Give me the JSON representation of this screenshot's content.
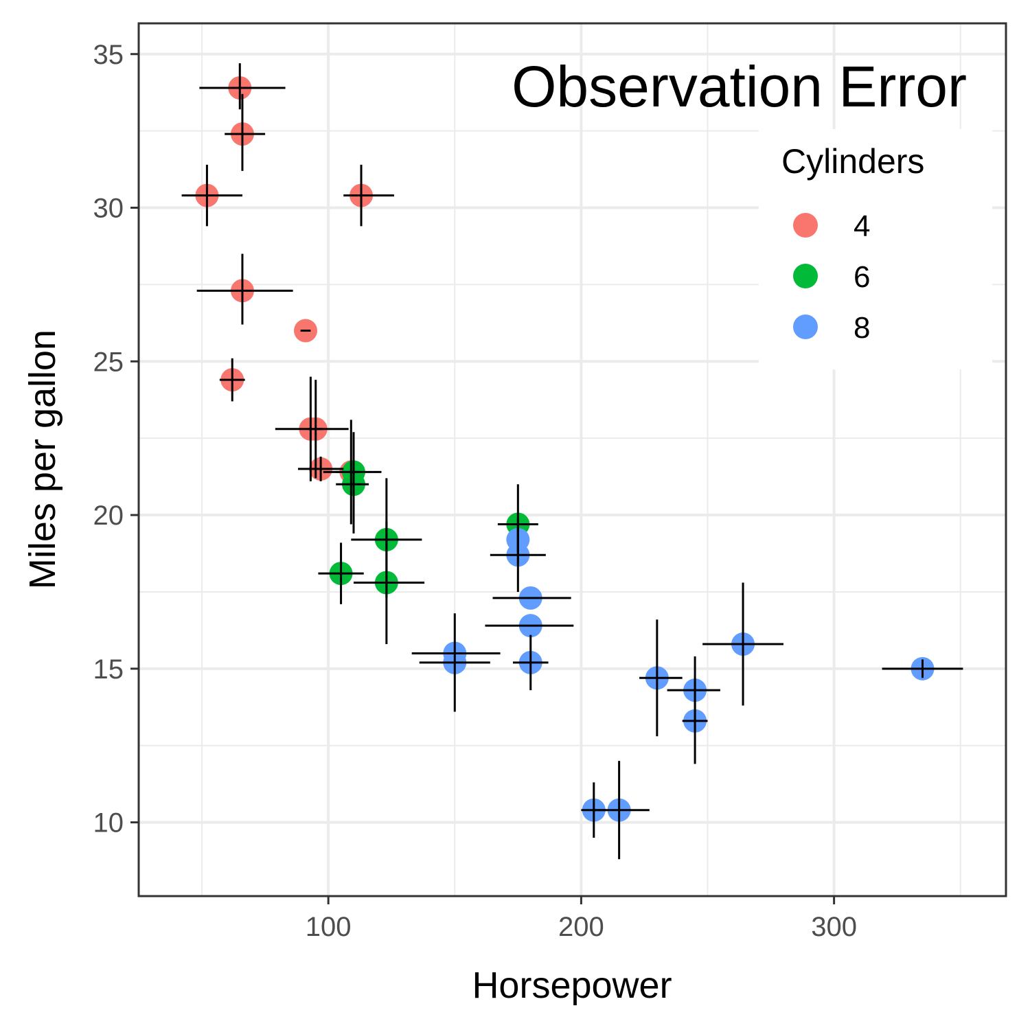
{
  "chart_data": {
    "type": "scatter",
    "title": "Observation Error",
    "xlabel": "Horsepower",
    "ylabel": "Miles per gallon",
    "xlim": [
      25,
      368
    ],
    "ylim": [
      7.6,
      36
    ],
    "xticks": [
      100,
      200,
      300
    ],
    "yticks": [
      10,
      15,
      20,
      25,
      30,
      35
    ],
    "grid": true,
    "legend": {
      "title": "Cylinders",
      "position": "top-right",
      "entries": [
        {
          "label": "4",
          "color": "#F8766D"
        },
        {
          "label": "6",
          "color": "#00BA38"
        },
        {
          "label": "8",
          "color": "#619CFF"
        }
      ]
    },
    "colors": {
      "4": "#F8766D",
      "6": "#00BA38",
      "8": "#619CFF"
    },
    "errorbar_color": "#000000",
    "points": [
      {
        "hp": 65,
        "mpg": 33.9,
        "cyl": "4",
        "ex": [
          49,
          83
        ],
        "ey": [
          33.2,
          34.7
        ]
      },
      {
        "hp": 66,
        "mpg": 32.4,
        "cyl": "4",
        "ex": [
          59,
          75
        ],
        "ey": [
          31.2,
          33.7
        ]
      },
      {
        "hp": 52,
        "mpg": 30.4,
        "cyl": "4",
        "ex": [
          42,
          66
        ],
        "ey": [
          29.4,
          31.4
        ]
      },
      {
        "hp": 113,
        "mpg": 30.4,
        "cyl": "4",
        "ex": [
          106,
          126
        ],
        "ey": [
          29.4,
          31.4
        ]
      },
      {
        "hp": 66,
        "mpg": 27.3,
        "cyl": "4",
        "ex": [
          48,
          86
        ],
        "ey": [
          26.2,
          28.5
        ]
      },
      {
        "hp": 91,
        "mpg": 26.0,
        "cyl": "4",
        "ex": [
          89,
          93
        ],
        "ey": [
          26.0,
          26.0
        ]
      },
      {
        "hp": 62,
        "mpg": 24.4,
        "cyl": "4",
        "ex": [
          57,
          67
        ],
        "ey": [
          23.7,
          25.1
        ]
      },
      {
        "hp": 93,
        "mpg": 22.8,
        "cyl": "4",
        "ex": [
          79,
          108
        ],
        "ey": [
          21.1,
          24.5
        ]
      },
      {
        "hp": 95,
        "mpg": 22.8,
        "cyl": "4",
        "ex": [
          92,
          98
        ],
        "ey": [
          21.2,
          24.4
        ]
      },
      {
        "hp": 97,
        "mpg": 21.5,
        "cyl": "4",
        "ex": [
          88,
          106
        ],
        "ey": [
          21.1,
          21.9
        ]
      },
      {
        "hp": 109,
        "mpg": 21.4,
        "cyl": "4",
        "ex": [
          98,
          121
        ],
        "ey": [
          19.7,
          23.1
        ]
      },
      {
        "hp": 110,
        "mpg": 21.4,
        "cyl": "6",
        "ex": [
          103,
          112
        ],
        "ey": [
          19.8,
          22.7
        ]
      },
      {
        "hp": 110,
        "mpg": 21.0,
        "cyl": "6",
        "ex": [
          103,
          116
        ],
        "ey": [
          19.4,
          22.6
        ]
      },
      {
        "hp": 123,
        "mpg": 19.2,
        "cyl": "6",
        "ex": [
          109,
          137
        ],
        "ey": [
          17.3,
          21.2
        ]
      },
      {
        "hp": 123,
        "mpg": 17.8,
        "cyl": "6",
        "ex": [
          110,
          138
        ],
        "ey": [
          15.8,
          19.8
        ]
      },
      {
        "hp": 105,
        "mpg": 18.1,
        "cyl": "6",
        "ex": [
          96,
          114
        ],
        "ey": [
          17.1,
          19.1
        ]
      },
      {
        "hp": 175,
        "mpg": 19.7,
        "cyl": "6",
        "ex": [
          167,
          183
        ],
        "ey": [
          18.4,
          21.0
        ]
      },
      {
        "hp": 175,
        "mpg": 19.2,
        "cyl": "8",
        "ex": [
          175,
          175
        ],
        "ey": [
          18.8,
          19.6
        ]
      },
      {
        "hp": 175,
        "mpg": 18.7,
        "cyl": "8",
        "ex": [
          164,
          186
        ],
        "ey": [
          17.5,
          19.9
        ]
      },
      {
        "hp": 180,
        "mpg": 17.3,
        "cyl": "8",
        "ex": [
          165,
          196
        ],
        "ey": [
          17.3,
          17.3
        ]
      },
      {
        "hp": 180,
        "mpg": 16.4,
        "cyl": "8",
        "ex": [
          162,
          197
        ],
        "ey": [
          16.4,
          16.4
        ]
      },
      {
        "hp": 180,
        "mpg": 15.2,
        "cyl": "8",
        "ex": [
          173,
          187
        ],
        "ey": [
          14.3,
          16.1
        ]
      },
      {
        "hp": 150,
        "mpg": 15.5,
        "cyl": "8",
        "ex": [
          133,
          168
        ],
        "ey": [
          15.5,
          15.5
        ]
      },
      {
        "hp": 150,
        "mpg": 15.2,
        "cyl": "8",
        "ex": [
          136,
          164
        ],
        "ey": [
          13.6,
          16.8
        ]
      },
      {
        "hp": 205,
        "mpg": 10.4,
        "cyl": "8",
        "ex": [
          200,
          210
        ],
        "ey": [
          9.5,
          11.3
        ]
      },
      {
        "hp": 215,
        "mpg": 10.4,
        "cyl": "8",
        "ex": [
          205,
          227
        ],
        "ey": [
          8.8,
          12.0
        ]
      },
      {
        "hp": 230,
        "mpg": 14.7,
        "cyl": "8",
        "ex": [
          223,
          240
        ],
        "ey": [
          12.8,
          16.6
        ]
      },
      {
        "hp": 245,
        "mpg": 14.3,
        "cyl": "8",
        "ex": [
          234,
          255
        ],
        "ey": [
          13.0,
          15.4
        ]
      },
      {
        "hp": 245,
        "mpg": 13.3,
        "cyl": "8",
        "ex": [
          240,
          250
        ],
        "ey": [
          11.9,
          14.7
        ]
      },
      {
        "hp": 264,
        "mpg": 15.8,
        "cyl": "8",
        "ex": [
          248,
          280
        ],
        "ey": [
          13.8,
          17.8
        ]
      },
      {
        "hp": 335,
        "mpg": 15.0,
        "cyl": "8",
        "ex": [
          319,
          351
        ],
        "ey": [
          14.7,
          15.3
        ]
      }
    ]
  }
}
